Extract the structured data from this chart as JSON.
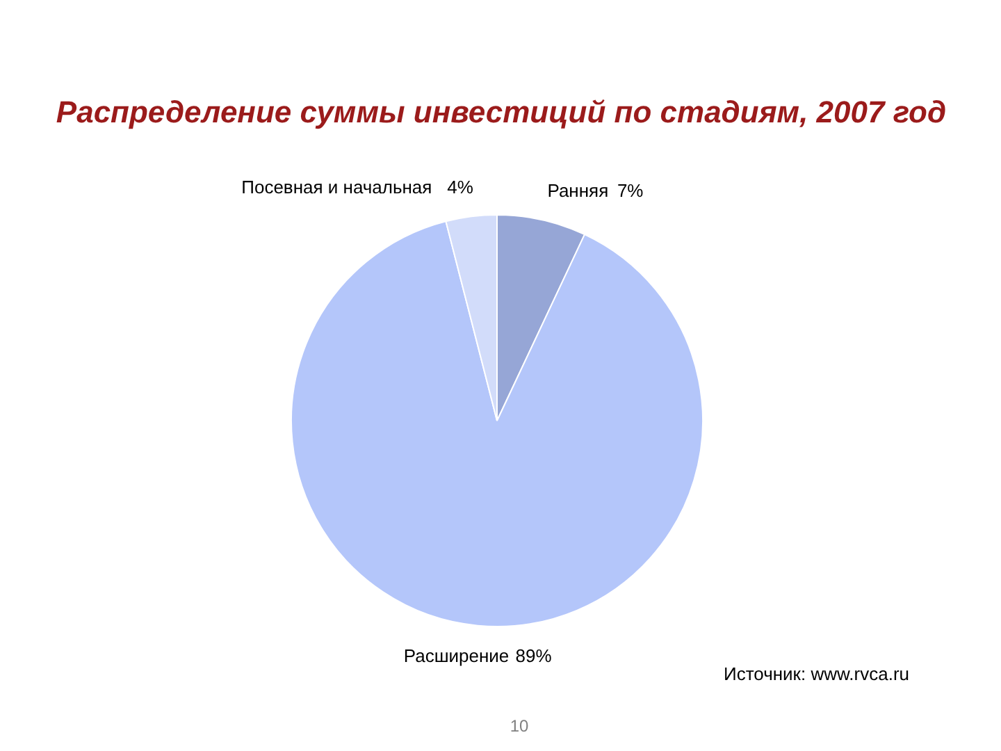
{
  "chart_data": {
    "type": "pie",
    "title": "Распределение суммы инвестиций по стадиям, 2007 год",
    "categories": [
      "Ранняя",
      "Расширение",
      "Посевная и начальная"
    ],
    "values": [
      7,
      89,
      4
    ],
    "value_labels": [
      "7%",
      "89%",
      "4%"
    ],
    "colors": [
      "#96a6d6",
      "#b4c6fa",
      "#d2dcfa"
    ],
    "annotations": [
      "Источник: www.rvca.ru",
      "10"
    ]
  }
}
